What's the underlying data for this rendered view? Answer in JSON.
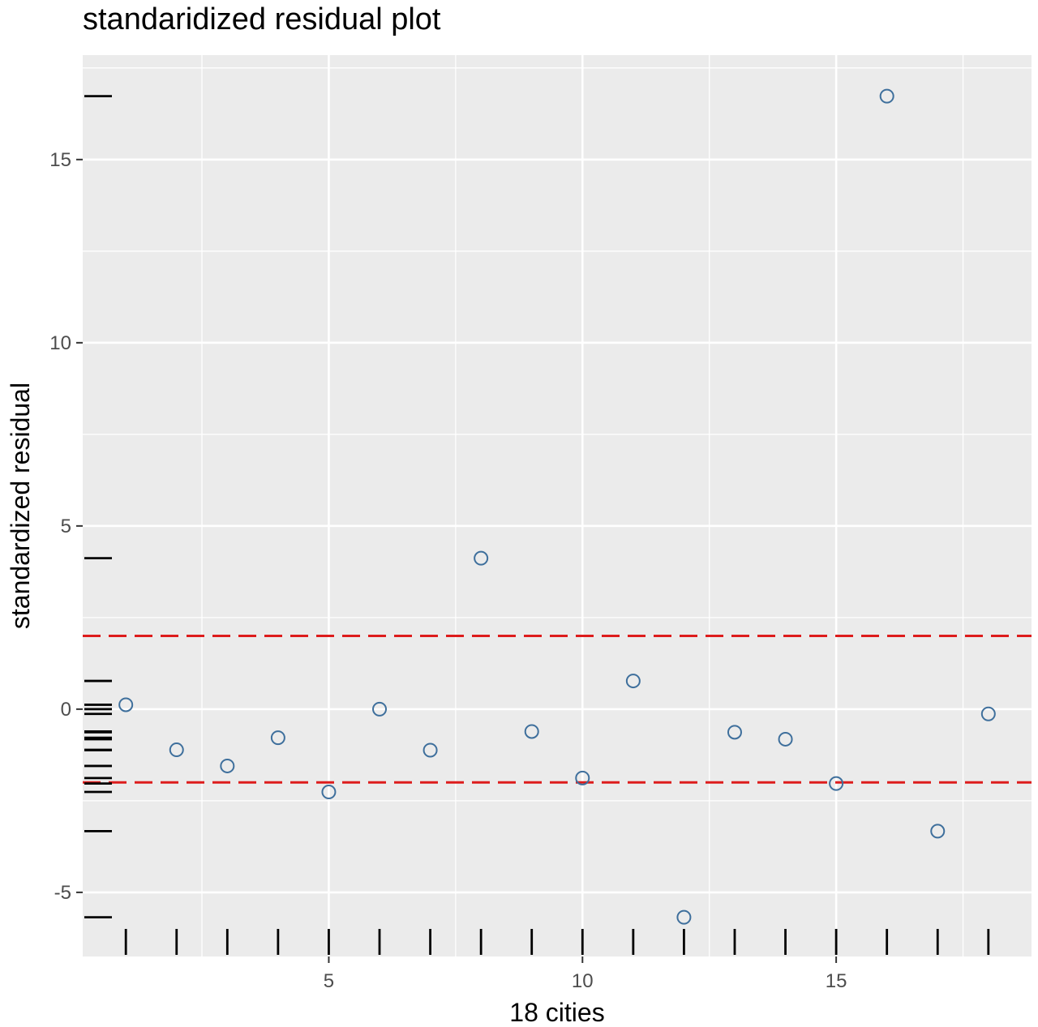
{
  "chart_data": {
    "type": "scatter",
    "title": "standaridized residual plot",
    "xlabel": "18 cities",
    "ylabel": "standardized residual",
    "xlim": [
      0.15,
      18.85
    ],
    "ylim": [
      -6.75,
      17.85
    ],
    "x_ticks": [
      5,
      10,
      15
    ],
    "x_tick_labels": [
      "5",
      "10",
      "15"
    ],
    "y_ticks": [
      -5,
      0,
      5,
      10,
      15
    ],
    "y_tick_labels": [
      "-5",
      "0",
      "5",
      "10",
      "15"
    ],
    "grid": true,
    "rug": {
      "x": true,
      "y": true
    },
    "reference_lines": [
      {
        "y": 2,
        "style": "dashed",
        "color": "#dd1c1c"
      },
      {
        "y": -2,
        "style": "dashed",
        "color": "#dd1c1c"
      }
    ],
    "series": [
      {
        "color": "#3e6f9c",
        "marker": "open-circle",
        "x": [
          1,
          2,
          3,
          4,
          5,
          6,
          7,
          8,
          9,
          10,
          11,
          12,
          13,
          14,
          15,
          16,
          17,
          18
        ],
        "y": [
          0.12,
          -1.11,
          -1.55,
          -0.78,
          -2.26,
          0.0,
          -1.12,
          4.12,
          -0.61,
          -1.88,
          0.77,
          -5.68,
          -0.63,
          -0.82,
          -2.03,
          16.73,
          -3.33,
          -0.13
        ]
      }
    ],
    "colors": {
      "panel_background": "#ebebeb",
      "grid_major": "#ffffff",
      "reference_line": "#dd1c1c",
      "point": "#3e6f9c",
      "rug": "#000000"
    }
  }
}
